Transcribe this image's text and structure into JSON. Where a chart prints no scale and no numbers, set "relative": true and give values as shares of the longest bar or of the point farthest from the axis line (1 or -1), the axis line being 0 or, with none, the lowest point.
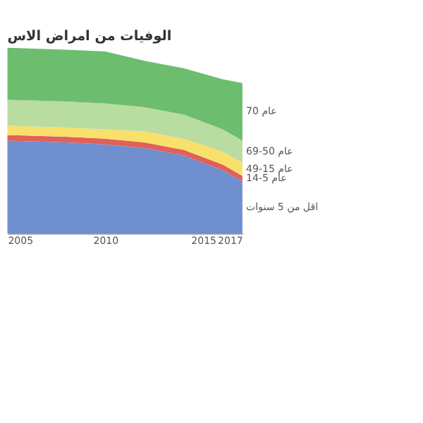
{
  "chart_data": {
    "type": "area",
    "title": "الوفيات من امراض الاس",
    "stacked": true,
    "relative": true,
    "x": [
      2005,
      2008,
      2010,
      2012,
      2014,
      2016,
      2017
    ],
    "xlim": [
      2005,
      2017
    ],
    "xticks": [
      2005,
      2010,
      2015,
      2017
    ],
    "series": [
      {
        "name": "اقل من 5 سنوات",
        "color": "#6f8fcf",
        "values": [
          0.5,
          0.49,
          0.48,
          0.46,
          0.42,
          0.34,
          0.28
        ]
      },
      {
        "name": "14-5 عام",
        "color": "#e0605a",
        "values": [
          0.03,
          0.03,
          0.03,
          0.03,
          0.03,
          0.03,
          0.03
        ]
      },
      {
        "name": "49-15 عام",
        "color": "#f9e06a",
        "values": [
          0.05,
          0.05,
          0.05,
          0.06,
          0.06,
          0.07,
          0.07
        ]
      },
      {
        "name": "69-50 عام",
        "color": "#b9dca0",
        "values": [
          0.14,
          0.14,
          0.14,
          0.13,
          0.13,
          0.12,
          0.12
        ]
      },
      {
        "name": "70 عام",
        "color": "#6cbd6e",
        "values": [
          0.28,
          0.28,
          0.28,
          0.25,
          0.25,
          0.27,
          0.31
        ]
      }
    ],
    "legend": "right"
  }
}
